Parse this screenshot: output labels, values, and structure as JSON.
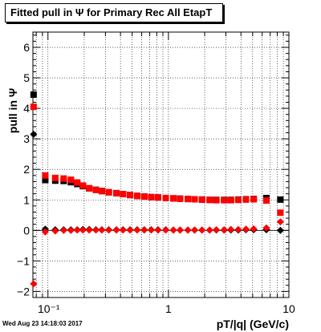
{
  "chart_data": {
    "type": "scatter",
    "title": "Fitted pull in  Ψ  for Primary Rec All EtapT",
    "xlabel": "pT/|q| (GeV/c)",
    "ylabel": "pull in  Ψ",
    "x_scale": "log",
    "xlim": [
      0.075,
      10
    ],
    "ylim": [
      -2.2,
      6.5
    ],
    "grid": true,
    "x_tick_labels": [
      "10⁻¹",
      "1",
      "10"
    ],
    "y_tick_labels": [
      "−2",
      "−1",
      "0",
      "1",
      "2",
      "3",
      "4",
      "5",
      "6"
    ],
    "timestamp": "Wed Aug 23 14:18:03 2017",
    "series": [
      {
        "marker": "black-square",
        "color": "#000000",
        "x": [
          0.076,
          0.095,
          0.115,
          0.135,
          0.155,
          0.175,
          0.195,
          0.22,
          0.25,
          0.28,
          0.32,
          0.37,
          0.42,
          0.48,
          0.55,
          0.63,
          0.72,
          0.82,
          0.95,
          1.1,
          1.25,
          1.45,
          1.65,
          1.9,
          2.2,
          2.5,
          2.9,
          3.3,
          3.8,
          4.4,
          5.1,
          6.5,
          8.5
        ],
        "y": [
          4.45,
          1.65,
          1.63,
          1.62,
          1.58,
          1.52,
          1.45,
          1.38,
          1.33,
          1.29,
          1.25,
          1.22,
          1.19,
          1.16,
          1.13,
          1.11,
          1.09,
          1.08,
          1.06,
          1.05,
          1.04,
          1.03,
          1.02,
          1.01,
          1.0,
          1.0,
          1.0,
          1.0,
          1.01,
          1.02,
          1.03,
          1.06,
          1.01
        ]
      },
      {
        "marker": "red-square",
        "color": "#ff0000",
        "x": [
          0.076,
          0.095,
          0.115,
          0.135,
          0.155,
          0.175,
          0.195,
          0.22,
          0.25,
          0.28,
          0.32,
          0.37,
          0.42,
          0.48,
          0.55,
          0.63,
          0.72,
          0.82,
          0.95,
          1.1,
          1.25,
          1.45,
          1.65,
          1.9,
          2.2,
          2.5,
          2.9,
          3.3,
          3.8,
          4.4,
          5.1,
          6.5,
          8.5
        ],
        "y": [
          4.05,
          1.8,
          1.72,
          1.7,
          1.66,
          1.57,
          1.47,
          1.38,
          1.33,
          1.29,
          1.25,
          1.22,
          1.19,
          1.16,
          1.13,
          1.11,
          1.09,
          1.08,
          1.06,
          1.05,
          1.04,
          1.03,
          1.02,
          1.01,
          1.0,
          0.99,
          0.99,
          0.99,
          1.0,
          1.01,
          1.02,
          0.98,
          0.58
        ]
      },
      {
        "marker": "black-diamond",
        "color": "#000000",
        "x": [
          0.076,
          0.095,
          0.115,
          0.135,
          0.155,
          0.175,
          0.195,
          0.22,
          0.25,
          0.28,
          0.32,
          0.37,
          0.42,
          0.48,
          0.55,
          0.63,
          0.72,
          0.82,
          0.95,
          1.1,
          1.25,
          1.45,
          1.65,
          1.9,
          2.2,
          2.5,
          2.9,
          3.3,
          3.8,
          4.4,
          5.1,
          6.5,
          8.5
        ],
        "y": [
          3.15,
          0.04,
          0.02,
          0.02,
          0.02,
          0.02,
          0.03,
          0.03,
          0.02,
          0.02,
          0.02,
          0.02,
          0.02,
          0.02,
          0.02,
          0.02,
          0.02,
          0.02,
          0.02,
          0.01,
          0.01,
          0.01,
          0.01,
          0.01,
          0.01,
          0.01,
          0.01,
          0.01,
          0.01,
          0.02,
          0.02,
          0.02,
          0.0
        ]
      },
      {
        "marker": "red-diamond",
        "color": "#ff0000",
        "x": [
          0.076,
          0.095,
          0.115,
          0.135,
          0.155,
          0.175,
          0.195,
          0.22,
          0.25,
          0.28,
          0.32,
          0.37,
          0.42,
          0.48,
          0.55,
          0.63,
          0.72,
          0.82,
          0.95,
          1.1,
          1.25,
          1.45,
          1.65,
          1.9,
          2.2,
          2.5,
          2.9,
          3.3,
          3.8,
          4.4,
          5.1,
          6.5,
          8.5
        ],
        "y": [
          -1.75,
          -0.05,
          -0.02,
          0.0,
          0.0,
          0.01,
          0.01,
          0.01,
          0.01,
          0.01,
          0.01,
          0.01,
          0.01,
          0.01,
          0.01,
          0.01,
          0.01,
          0.01,
          0.01,
          0.01,
          0.01,
          0.01,
          0.01,
          0.01,
          0.01,
          0.02,
          0.02,
          0.03,
          0.03,
          0.04,
          0.05,
          0.08,
          0.28
        ]
      }
    ]
  }
}
